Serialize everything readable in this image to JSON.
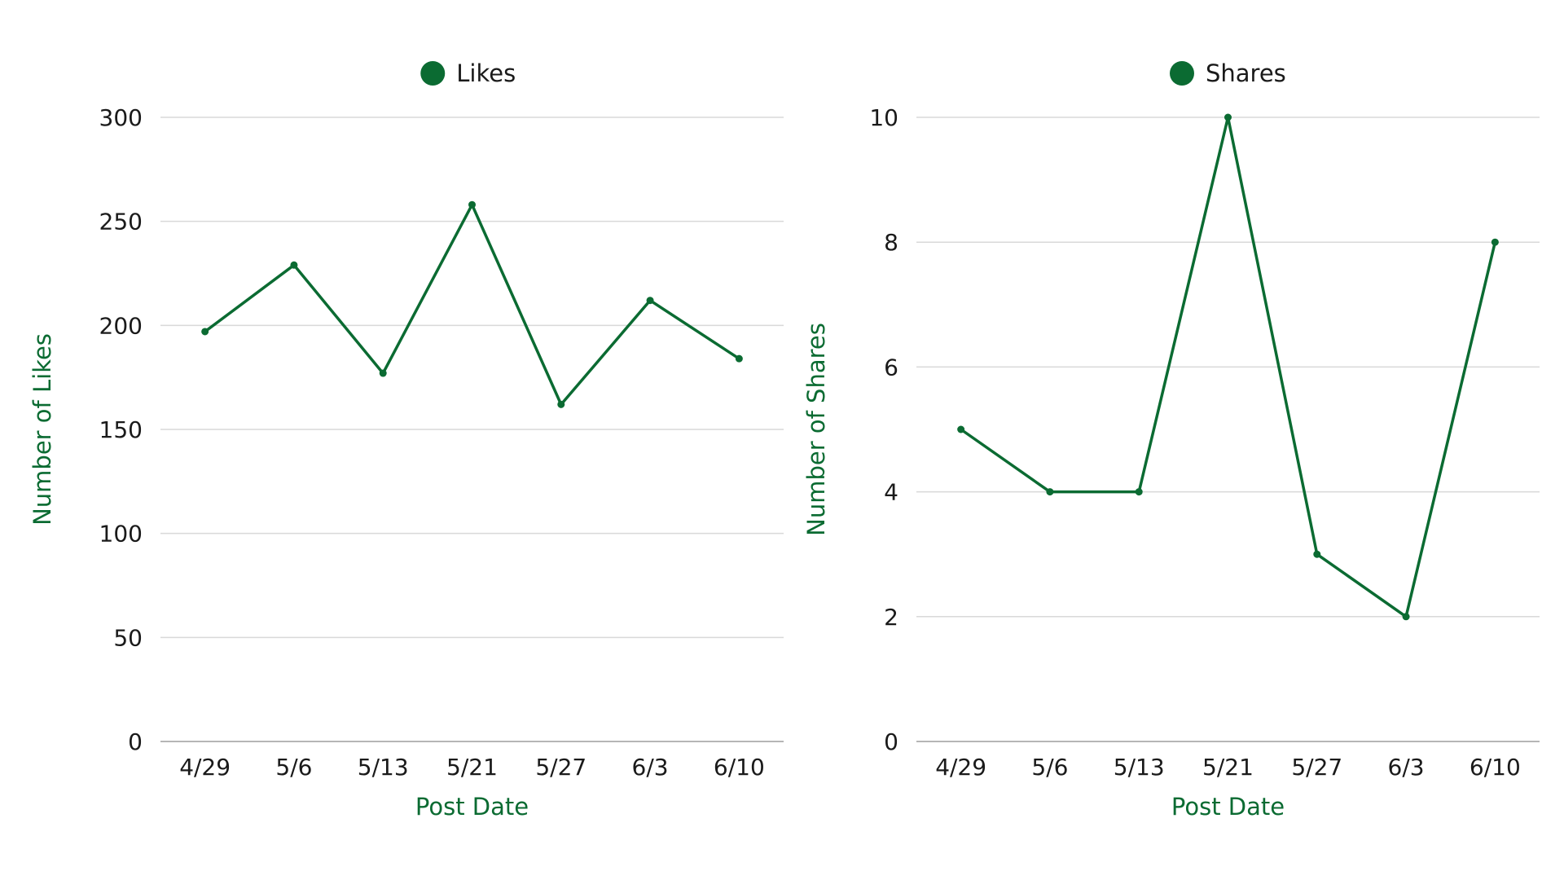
{
  "chart_data": [
    {
      "type": "line",
      "title": "",
      "legend": "Likes",
      "legend_position": "top-center",
      "xlabel": "Post Date",
      "ylabel": "Number of Likes",
      "categories": [
        "4/29",
        "5/6",
        "5/13",
        "5/21",
        "5/27",
        "6/3",
        "6/10"
      ],
      "values": [
        197,
        229,
        177,
        258,
        162,
        212,
        184
      ],
      "ylim": [
        0,
        300
      ],
      "yticks": [
        0,
        50,
        100,
        150,
        200,
        250,
        300
      ],
      "grid": true,
      "color": "#0b6b32"
    },
    {
      "type": "line",
      "title": "",
      "legend": "Shares",
      "legend_position": "top-center",
      "xlabel": "Post Date",
      "ylabel": "Number of Shares",
      "categories": [
        "4/29",
        "5/6",
        "5/13",
        "5/21",
        "5/27",
        "6/3",
        "6/10"
      ],
      "values": [
        5,
        4,
        4,
        10,
        3,
        2,
        8
      ],
      "ylim": [
        0,
        10
      ],
      "yticks": [
        0,
        2,
        4,
        6,
        8,
        10
      ],
      "grid": true,
      "color": "#0b6b32"
    }
  ]
}
